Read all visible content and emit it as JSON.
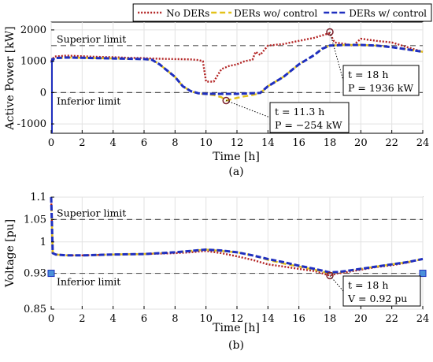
{
  "legend": {
    "items": [
      {
        "label": "No DERs",
        "color": "#b22222",
        "dash": "2,2"
      },
      {
        "label": "DERs wo/ control",
        "color": "#e3c21a",
        "dash": "7,4"
      },
      {
        "label": "DERs w/ control",
        "color": "#1f2fbf",
        "dash": "7,3"
      }
    ]
  },
  "chart_data": [
    {
      "type": "line",
      "panel_label": "(a)",
      "xlabel": "Time [h]",
      "ylabel": "Active Power [kW]",
      "xlim": [
        0,
        24
      ],
      "ylim": [
        -1300,
        2250
      ],
      "xticks": [
        0,
        2,
        4,
        6,
        8,
        10,
        12,
        14,
        16,
        18,
        20,
        22,
        24
      ],
      "yticks": [
        -1000,
        0,
        1000,
        2000
      ],
      "grid": true,
      "reference_lines": [
        {
          "y": 1500,
          "label": "Superior limit"
        },
        {
          "y": 0,
          "label": "Inferior limit"
        }
      ],
      "series": [
        {
          "name": "No DERs",
          "x": [
            0,
            0.2,
            1,
            2,
            3,
            4,
            5,
            6,
            6.5,
            7,
            8,
            9,
            9.5,
            9.8,
            10,
            10.5,
            11,
            11.5,
            12,
            12.5,
            13,
            13.2,
            13.5,
            14,
            15,
            16,
            17,
            18,
            18.3,
            19,
            19.5,
            20,
            21,
            22,
            23,
            24
          ],
          "y": [
            1000,
            1150,
            1180,
            1160,
            1140,
            1130,
            1110,
            1100,
            1090,
            1080,
            1070,
            1060,
            1040,
            1000,
            350,
            350,
            750,
            850,
            900,
            1000,
            1050,
            1300,
            1200,
            1500,
            1550,
            1650,
            1750,
            1900,
            1600,
            1550,
            1500,
            1720,
            1650,
            1600,
            1450,
            1300
          ]
        },
        {
          "name": "DERs wo/ control",
          "x": [
            0,
            0.2,
            1,
            2,
            3,
            4,
            5,
            6,
            6.5,
            7,
            8,
            8.5,
            9,
            9.5,
            10,
            10.5,
            11,
            11.3,
            11.6,
            12,
            12.5,
            13,
            13.5,
            14,
            15,
            16,
            17,
            17.5,
            18,
            19,
            20,
            21,
            22,
            23,
            24
          ],
          "y": [
            950,
            1100,
            1120,
            1110,
            1100,
            1090,
            1080,
            1070,
            1050,
            900,
            500,
            200,
            50,
            -30,
            -50,
            -80,
            -150,
            -254,
            -220,
            -170,
            -120,
            -80,
            -20,
            200,
            500,
            900,
            1200,
            1400,
            1500,
            1520,
            1520,
            1500,
            1450,
            1380,
            1300
          ]
        },
        {
          "name": "DERs w/ control",
          "x": [
            0,
            0.2,
            1,
            2,
            3,
            4,
            5,
            6,
            6.5,
            7,
            8,
            8.5,
            9,
            9.5,
            10,
            10.5,
            11,
            11.5,
            12,
            12.5,
            13,
            13.5,
            14,
            15,
            16,
            17,
            17.5,
            18,
            19,
            20,
            21,
            22,
            23,
            24
          ],
          "y": [
            950,
            1100,
            1120,
            1110,
            1100,
            1090,
            1080,
            1070,
            1050,
            900,
            500,
            200,
            50,
            -20,
            -40,
            -40,
            -40,
            -40,
            -40,
            -30,
            -20,
            -10,
            200,
            500,
            900,
            1200,
            1400,
            1500,
            1520,
            1520,
            1500,
            1450,
            1380,
            1300
          ]
        }
      ],
      "annotations": [
        {
          "label_line1": "t = 18 h",
          "label_line2": "P = 1936 kW",
          "x": 18,
          "y": 1936
        },
        {
          "label_line1": "t = 11.3 h",
          "label_line2": "P = −254 kW",
          "x": 11.3,
          "y": -254
        }
      ]
    },
    {
      "type": "line",
      "panel_label": "(b)",
      "xlabel": "Time [h]",
      "ylabel": "Voltage [pu]",
      "xlim": [
        0,
        24
      ],
      "ylim": [
        0.85,
        1.1
      ],
      "xticks": [
        0,
        2,
        4,
        6,
        8,
        10,
        12,
        14,
        16,
        18,
        20,
        22,
        24
      ],
      "yticks": [
        0.85,
        0.93,
        1,
        1.05,
        1.1
      ],
      "grid": true,
      "reference_lines": [
        {
          "y": 1.05,
          "label": "Superior limit"
        },
        {
          "y": 0.93,
          "label": "Inferior limit"
        }
      ],
      "series": [
        {
          "name": "No DERs",
          "x": [
            0,
            0.1,
            0.3,
            1,
            2,
            4,
            6,
            8,
            9,
            10,
            11,
            12,
            13,
            14,
            15,
            16,
            17,
            18,
            18.5,
            19,
            20,
            21,
            22,
            23,
            24
          ],
          "y": [
            1.1,
            0.975,
            0.972,
            0.97,
            0.97,
            0.972,
            0.973,
            0.975,
            0.977,
            0.98,
            0.975,
            0.968,
            0.96,
            0.95,
            0.945,
            0.94,
            0.935,
            0.925,
            0.93,
            0.932,
            0.938,
            0.944,
            0.948,
            0.954,
            0.962
          ]
        },
        {
          "name": "DERs wo/ control",
          "x": [
            0,
            0.1,
            0.3,
            1,
            2,
            4,
            6,
            8,
            9,
            10,
            11,
            12,
            13,
            14,
            15,
            16,
            17,
            18,
            18.5,
            19,
            20,
            21,
            22,
            23,
            24
          ],
          "y": [
            1.1,
            0.975,
            0.972,
            0.97,
            0.97,
            0.972,
            0.973,
            0.977,
            0.98,
            0.983,
            0.98,
            0.977,
            0.97,
            0.96,
            0.952,
            0.945,
            0.938,
            0.93,
            0.932,
            0.934,
            0.94,
            0.945,
            0.95,
            0.955,
            0.962
          ]
        },
        {
          "name": "DERs w/ control",
          "x": [
            0,
            0.1,
            0.3,
            1,
            2,
            4,
            6,
            8,
            9,
            10,
            11,
            12,
            13,
            14,
            15,
            16,
            17,
            18,
            18.5,
            19,
            20,
            21,
            22,
            23,
            24
          ],
          "y": [
            1.1,
            0.975,
            0.972,
            0.97,
            0.97,
            0.972,
            0.973,
            0.977,
            0.98,
            0.983,
            0.981,
            0.977,
            0.97,
            0.962,
            0.955,
            0.947,
            0.94,
            0.932,
            0.933,
            0.935,
            0.94,
            0.945,
            0.95,
            0.955,
            0.962
          ]
        }
      ],
      "annotations": [
        {
          "label_line1": "t = 18 h",
          "label_line2": "V = 0.92 pu",
          "x": 18,
          "y": 0.925
        }
      ]
    }
  ]
}
